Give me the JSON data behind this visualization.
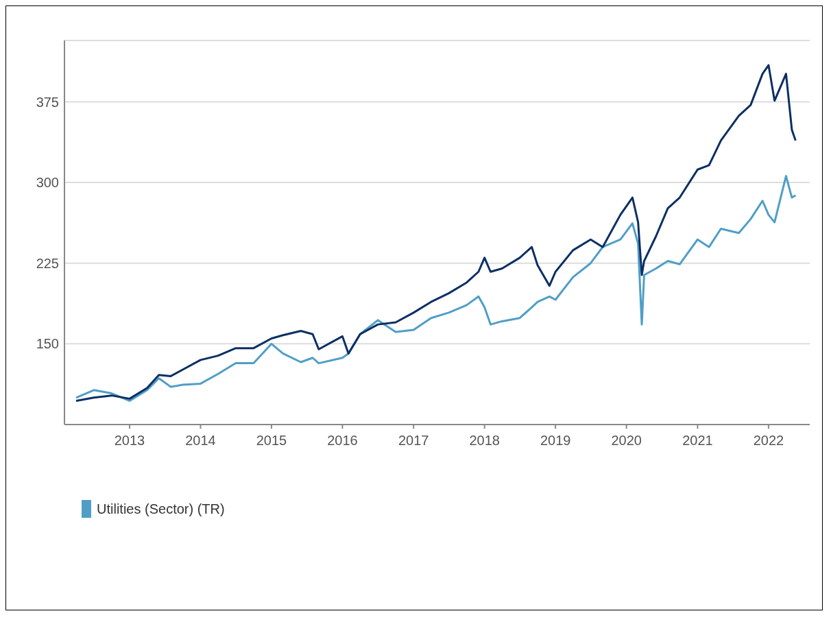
{
  "chart_data": {
    "type": "line",
    "x": [
      "2012-04",
      "2012-07",
      "2012-10",
      "2013-01",
      "2013-04",
      "2013-06",
      "2013-08",
      "2013-10",
      "2014-01",
      "2014-04",
      "2014-07",
      "2014-10",
      "2015-01",
      "2015-03",
      "2015-06",
      "2015-08",
      "2015-09",
      "2016-01",
      "2016-02",
      "2016-04",
      "2016-07",
      "2016-10",
      "2017-01",
      "2017-04",
      "2017-07",
      "2017-10",
      "2017-12",
      "2018-01",
      "2018-02",
      "2018-04",
      "2018-07",
      "2018-09",
      "2018-10",
      "2018-12",
      "2019-01",
      "2019-04",
      "2019-07",
      "2019-09",
      "2019-12",
      "2020-02",
      "2020-03-01",
      "2020-03-20",
      "2020-04",
      "2020-06",
      "2020-08",
      "2020-10",
      "2021-01",
      "2021-03",
      "2021-05",
      "2021-08",
      "2021-10",
      "2021-12",
      "2022-01",
      "2022-02",
      "2022-04",
      "2022-05",
      "2022-05-20"
    ],
    "series": [
      {
        "name": "Utilities (Sector) (TR)",
        "color": "#4f9ec8",
        "values": [
          100,
          107,
          104,
          97,
          107,
          118,
          110,
          112,
          113,
          122,
          132,
          132,
          150,
          141,
          133,
          137,
          132,
          137,
          141,
          159,
          172,
          161,
          163,
          174,
          179,
          186,
          194,
          184,
          168,
          171,
          174,
          184,
          189,
          194,
          191,
          212,
          225,
          240,
          247,
          262,
          243,
          168,
          214,
          220,
          227,
          224,
          247,
          240,
          257,
          253,
          266,
          283,
          270,
          263,
          306,
          286,
          288
        ]
      },
      {
        "color": "#0b2f63",
        "values": [
          97,
          100,
          102,
          99,
          109,
          121,
          120,
          126,
          135,
          139,
          146,
          146,
          155,
          158,
          162,
          159,
          145,
          157,
          141,
          159,
          168,
          170,
          179,
          189,
          197,
          207,
          217,
          230,
          217,
          220,
          230,
          240,
          223,
          204,
          217,
          237,
          247,
          240,
          270,
          286,
          263,
          214,
          227,
          250,
          276,
          286,
          312,
          316,
          339,
          362,
          372,
          401,
          409,
          376,
          401,
          349,
          339
        ]
      }
    ],
    "xlim": [
      "2012-02",
      "2022-08"
    ],
    "xticks": [
      {
        "value": "2013",
        "label": "2013"
      },
      {
        "value": "2014",
        "label": "2014"
      },
      {
        "value": "2015",
        "label": "2015"
      },
      {
        "value": "2016",
        "label": "2016"
      },
      {
        "value": "2017",
        "label": "2017"
      },
      {
        "value": "2018",
        "label": "2018"
      },
      {
        "value": "2019",
        "label": "2019"
      },
      {
        "value": "2020",
        "label": "2020"
      },
      {
        "value": "2021",
        "label": "2021"
      },
      {
        "value": "2022",
        "label": "2022"
      }
    ],
    "ylim": [
      75,
      432
    ],
    "yticks": [
      150,
      225,
      300,
      375
    ],
    "grid": "y",
    "legend": "bottom",
    "marker": "none",
    "line_style": "solid"
  }
}
